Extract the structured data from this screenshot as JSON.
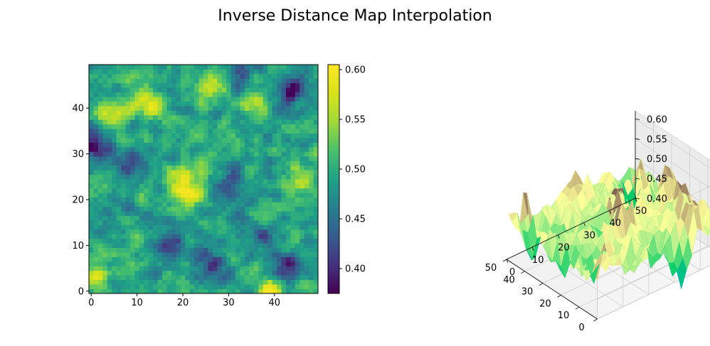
{
  "figure": {
    "title": "Inverse Distance Map Interpolation"
  },
  "chart_data": [
    {
      "type": "heatmap",
      "title": "",
      "xlabel": "",
      "ylabel": "",
      "grid_size": [
        50,
        50
      ],
      "xlim": [
        0,
        49
      ],
      "ylim": [
        0,
        49
      ],
      "xticks": [
        "0",
        "10",
        "20",
        "30",
        "40"
      ],
      "yticks": [
        "0",
        "10",
        "20",
        "30",
        "40"
      ],
      "colormap": "viridis",
      "value_range": [
        0.375,
        0.605
      ],
      "colorbar_ticks": [
        "0.40",
        "0.45",
        "0.50",
        "0.55",
        "0.60"
      ],
      "features": [
        {
          "x": 39,
          "y": 0,
          "value": 0.6
        },
        {
          "x": 12,
          "y": 41,
          "value": 0.58
        },
        {
          "x": 20,
          "y": 25,
          "value": 0.58
        },
        {
          "x": 5,
          "y": 39,
          "value": 0.58
        },
        {
          "x": 26,
          "y": 45,
          "value": 0.57
        },
        {
          "x": 35,
          "y": 41,
          "value": 0.57
        },
        {
          "x": 21,
          "y": 21,
          "value": 0.57
        },
        {
          "x": 1,
          "y": 3,
          "value": 0.57
        },
        {
          "x": 46,
          "y": 24,
          "value": 0.56
        },
        {
          "x": 1,
          "y": 32,
          "value": 0.38
        },
        {
          "x": 44,
          "y": 44,
          "value": 0.39
        },
        {
          "x": 43,
          "y": 5,
          "value": 0.4
        },
        {
          "x": 26,
          "y": 5,
          "value": 0.4
        },
        {
          "x": 9,
          "y": 27,
          "value": 0.42
        },
        {
          "x": 30,
          "y": 23,
          "value": 0.43
        },
        {
          "x": 17,
          "y": 10,
          "value": 0.42
        },
        {
          "x": 36,
          "y": 12,
          "value": 0.43
        },
        {
          "x": 32,
          "y": 47,
          "value": 0.42
        }
      ]
    },
    {
      "type": "surface3d",
      "title": "",
      "xlim": [
        0,
        50
      ],
      "ylim": [
        0,
        50
      ],
      "zlim": [
        0.4,
        0.6
      ],
      "xticks": [
        "0",
        "10",
        "20",
        "30",
        "40",
        "50"
      ],
      "yticks": [
        "0",
        "10",
        "20",
        "30",
        "40",
        "50"
      ],
      "zticks": [
        "0.40",
        "0.45",
        "0.50",
        "0.55",
        "0.60"
      ],
      "colormap": "terrain",
      "grid": true
    }
  ]
}
